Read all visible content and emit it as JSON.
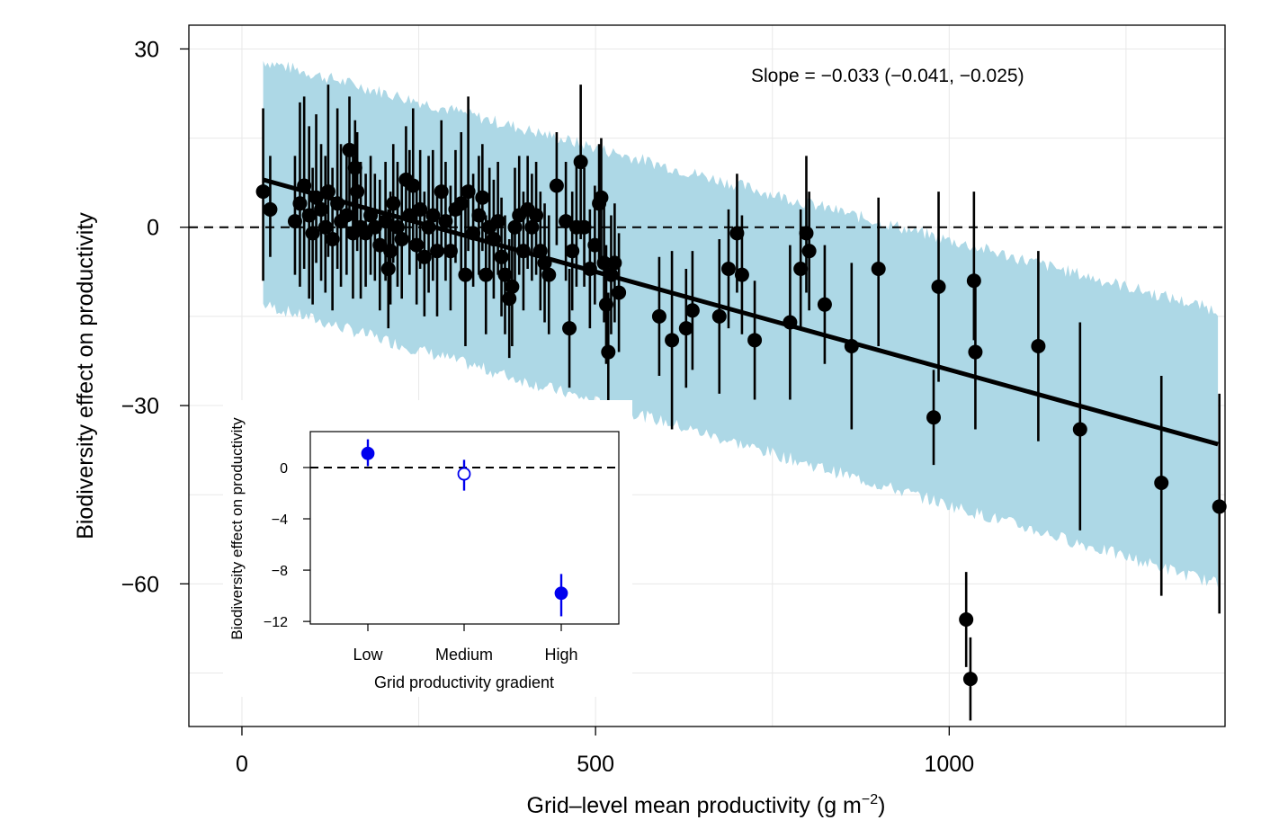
{
  "chart_data": [
    {
      "type": "scatter",
      "title": "",
      "xlabel": "Grid–level mean productivity (g m",
      "xlabel_sup": "−2",
      "xlabel_suffix": ")",
      "ylabel": "Biodiversity effect on productivity",
      "xlim": [
        -75,
        1390
      ],
      "ylim": [
        -84,
        34
      ],
      "xticks": [
        0,
        500,
        1000
      ],
      "xtick_labels": [
        "0",
        "500",
        "1000"
      ],
      "yticks": [
        30,
        0,
        -30,
        -60
      ],
      "ytick_labels": [
        "30",
        "0",
        "−30",
        "−60"
      ],
      "grid": true,
      "reference_line_y": 0,
      "annotation": "Slope = −0.033 (−0.041, −0.025)",
      "fit_line": {
        "x": [
          30,
          1380
        ],
        "y": [
          8,
          -36.5
        ]
      },
      "band": {
        "x": [
          30,
          1380
        ],
        "upper": [
          28,
          -14
        ],
        "lower": [
          -13,
          -60
        ]
      },
      "points": [
        {
          "x": 30,
          "y": 6,
          "lo": -9,
          "hi": 20
        },
        {
          "x": 40,
          "y": 3,
          "lo": -5,
          "hi": 12
        },
        {
          "x": 75,
          "y": 1,
          "lo": -8,
          "hi": 12
        },
        {
          "x": 82,
          "y": 4,
          "lo": -10,
          "hi": 21
        },
        {
          "x": 88,
          "y": 7,
          "lo": -7,
          "hi": 22
        },
        {
          "x": 95,
          "y": 2,
          "lo": -12,
          "hi": 17
        },
        {
          "x": 100,
          "y": -1,
          "lo": -13,
          "hi": 10
        },
        {
          "x": 105,
          "y": 5,
          "lo": -6,
          "hi": 19
        },
        {
          "x": 112,
          "y": 3,
          "lo": -9,
          "hi": 14
        },
        {
          "x": 118,
          "y": 0,
          "lo": -11,
          "hi": 12
        },
        {
          "x": 122,
          "y": 6,
          "lo": -5,
          "hi": 24
        },
        {
          "x": 128,
          "y": -2,
          "lo": -14,
          "hi": 10
        },
        {
          "x": 135,
          "y": 4,
          "lo": -7,
          "hi": 20
        },
        {
          "x": 140,
          "y": 1,
          "lo": -10,
          "hi": 14
        },
        {
          "x": 148,
          "y": 2,
          "lo": -8,
          "hi": 13
        },
        {
          "x": 152,
          "y": 13,
          "lo": 2,
          "hi": 22
        },
        {
          "x": 157,
          "y": -1,
          "lo": -12,
          "hi": 12
        },
        {
          "x": 160,
          "y": 10,
          "lo": -2,
          "hi": 18
        },
        {
          "x": 163,
          "y": 6,
          "lo": -4,
          "hi": 16
        },
        {
          "x": 168,
          "y": 0,
          "lo": -12,
          "hi": 11
        },
        {
          "x": 175,
          "y": -1,
          "lo": -10,
          "hi": 9
        },
        {
          "x": 182,
          "y": 2,
          "lo": -8,
          "hi": 12
        },
        {
          "x": 188,
          "y": 0,
          "lo": -9,
          "hi": 9
        },
        {
          "x": 195,
          "y": -3,
          "lo": -14,
          "hi": 8
        },
        {
          "x": 203,
          "y": 1,
          "lo": -9,
          "hi": 11
        },
        {
          "x": 207,
          "y": -7,
          "lo": -17,
          "hi": 3
        },
        {
          "x": 210,
          "y": -4,
          "lo": -13,
          "hi": 6
        },
        {
          "x": 214,
          "y": 4,
          "lo": -6,
          "hi": 14
        },
        {
          "x": 220,
          "y": 0,
          "lo": -10,
          "hi": 11
        },
        {
          "x": 226,
          "y": -2,
          "lo": -12,
          "hi": 8
        },
        {
          "x": 232,
          "y": 8,
          "lo": -2,
          "hi": 17
        },
        {
          "x": 237,
          "y": 2,
          "lo": -8,
          "hi": 13
        },
        {
          "x": 242,
          "y": 7,
          "lo": -4,
          "hi": 20
        },
        {
          "x": 247,
          "y": -3,
          "lo": -13,
          "hi": 8
        },
        {
          "x": 252,
          "y": 3,
          "lo": -7,
          "hi": 13
        },
        {
          "x": 258,
          "y": -5,
          "lo": -15,
          "hi": 6
        },
        {
          "x": 264,
          "y": 0,
          "lo": -11,
          "hi": 12
        },
        {
          "x": 270,
          "y": 2,
          "lo": -9,
          "hi": 13
        },
        {
          "x": 276,
          "y": -4,
          "lo": -15,
          "hi": 6
        },
        {
          "x": 282,
          "y": 6,
          "lo": -4,
          "hi": 18
        },
        {
          "x": 288,
          "y": 1,
          "lo": -9,
          "hi": 11
        },
        {
          "x": 295,
          "y": -4,
          "lo": -14,
          "hi": 7
        },
        {
          "x": 302,
          "y": 3,
          "lo": -6,
          "hi": 13
        },
        {
          "x": 310,
          "y": 4,
          "lo": -8,
          "hi": 16
        },
        {
          "x": 316,
          "y": -8,
          "lo": -20,
          "hi": 4
        },
        {
          "x": 320,
          "y": 6,
          "lo": -4,
          "hi": 22
        },
        {
          "x": 327,
          "y": -1,
          "lo": -10,
          "hi": 9
        },
        {
          "x": 335,
          "y": 2,
          "lo": -8,
          "hi": 12
        },
        {
          "x": 340,
          "y": 5,
          "lo": -4,
          "hi": 14
        },
        {
          "x": 345,
          "y": -8,
          "lo": -18,
          "hi": 2
        },
        {
          "x": 350,
          "y": 0,
          "lo": -9,
          "hi": 10
        },
        {
          "x": 356,
          "y": -2,
          "lo": -12,
          "hi": 8
        },
        {
          "x": 362,
          "y": 1,
          "lo": -8,
          "hi": 11
        },
        {
          "x": 367,
          "y": -5,
          "lo": -15,
          "hi": 5
        },
        {
          "x": 372,
          "y": -8,
          "lo": -18,
          "hi": 2
        },
        {
          "x": 378,
          "y": -12,
          "lo": -22,
          "hi": -2
        },
        {
          "x": 382,
          "y": -10,
          "lo": -20,
          "hi": 0
        },
        {
          "x": 386,
          "y": 0,
          "lo": -9,
          "hi": 10
        },
        {
          "x": 392,
          "y": 2,
          "lo": -8,
          "hi": 12
        },
        {
          "x": 398,
          "y": -4,
          "lo": -14,
          "hi": 6
        },
        {
          "x": 404,
          "y": 3,
          "lo": -7,
          "hi": 12
        },
        {
          "x": 410,
          "y": 0,
          "lo": -9,
          "hi": 9
        },
        {
          "x": 416,
          "y": 2,
          "lo": -8,
          "hi": 11
        },
        {
          "x": 422,
          "y": -4,
          "lo": -14,
          "hi": 6
        },
        {
          "x": 428,
          "y": -6,
          "lo": -16,
          "hi": 4
        },
        {
          "x": 434,
          "y": -8,
          "lo": -18,
          "hi": 2
        },
        {
          "x": 445,
          "y": 7,
          "lo": -3,
          "hi": 16
        },
        {
          "x": 458,
          "y": 1,
          "lo": -9,
          "hi": 11
        },
        {
          "x": 463,
          "y": -17,
          "lo": -27,
          "hi": -7
        },
        {
          "x": 467,
          "y": -4,
          "lo": -14,
          "hi": 6
        },
        {
          "x": 473,
          "y": 0,
          "lo": -10,
          "hi": 11
        },
        {
          "x": 479,
          "y": 11,
          "lo": -2,
          "hi": 24
        },
        {
          "x": 484,
          "y": 0,
          "lo": -10,
          "hi": 10
        },
        {
          "x": 492,
          "y": -7,
          "lo": -17,
          "hi": 3
        },
        {
          "x": 499,
          "y": -3,
          "lo": -13,
          "hi": 7
        },
        {
          "x": 505,
          "y": 4,
          "lo": -6,
          "hi": 14
        },
        {
          "x": 508,
          "y": 5,
          "lo": -5,
          "hi": 15
        },
        {
          "x": 512,
          "y": -6,
          "lo": -16,
          "hi": 4
        },
        {
          "x": 515,
          "y": -13,
          "lo": -23,
          "hi": -3
        },
        {
          "x": 518,
          "y": -21,
          "lo": -31,
          "hi": -11
        },
        {
          "x": 522,
          "y": -8,
          "lo": -18,
          "hi": 2
        },
        {
          "x": 527,
          "y": -6,
          "lo": -16,
          "hi": 4
        },
        {
          "x": 533,
          "y": -11,
          "lo": -21,
          "hi": -1
        },
        {
          "x": 590,
          "y": -15,
          "lo": -25,
          "hi": -5
        },
        {
          "x": 608,
          "y": -19,
          "lo": -34,
          "hi": -4
        },
        {
          "x": 628,
          "y": -17,
          "lo": -27,
          "hi": -7
        },
        {
          "x": 637,
          "y": -14,
          "lo": -24,
          "hi": -4
        },
        {
          "x": 675,
          "y": -15,
          "lo": -28,
          "hi": -2
        },
        {
          "x": 688,
          "y": -7,
          "lo": -17,
          "hi": 3
        },
        {
          "x": 700,
          "y": -1,
          "lo": -11,
          "hi": 9
        },
        {
          "x": 707,
          "y": -8,
          "lo": -18,
          "hi": 2
        },
        {
          "x": 725,
          "y": -19,
          "lo": -29,
          "hi": -9
        },
        {
          "x": 775,
          "y": -16,
          "lo": -29,
          "hi": -3
        },
        {
          "x": 790,
          "y": -7,
          "lo": -17,
          "hi": 3
        },
        {
          "x": 798,
          "y": -1,
          "lo": -11,
          "hi": 12
        },
        {
          "x": 802,
          "y": -4,
          "lo": -14,
          "hi": 6
        },
        {
          "x": 824,
          "y": -13,
          "lo": -23,
          "hi": -3
        },
        {
          "x": 862,
          "y": -20,
          "lo": -34,
          "hi": -6
        },
        {
          "x": 900,
          "y": -7,
          "lo": -20,
          "hi": 5
        },
        {
          "x": 978,
          "y": -32,
          "lo": -40,
          "hi": -24
        },
        {
          "x": 985,
          "y": -10,
          "lo": -26,
          "hi": 6
        },
        {
          "x": 1035,
          "y": -9,
          "lo": -19,
          "hi": 6
        },
        {
          "x": 1037,
          "y": -21,
          "lo": -34,
          "hi": -8
        },
        {
          "x": 1126,
          "y": -20,
          "lo": -36,
          "hi": -4
        },
        {
          "x": 1185,
          "y": -34,
          "lo": -51,
          "hi": -16
        },
        {
          "x": 1300,
          "y": -43,
          "lo": -62,
          "hi": -25
        },
        {
          "x": 1382,
          "y": -47,
          "lo": -65,
          "hi": -28
        },
        {
          "x": 1024,
          "y": -66,
          "lo": -74,
          "hi": -58
        },
        {
          "x": 1030,
          "y": -76,
          "lo": -83,
          "hi": -69
        }
      ]
    },
    {
      "type": "scatter",
      "title": "",
      "xlabel": "Grid productivity gradient",
      "ylabel": "Biodiversity effect on productivity",
      "categories": [
        "Low",
        "Medium",
        "High"
      ],
      "ylim": [
        -12.2,
        2.8
      ],
      "yticks": [
        0,
        -4,
        -8,
        -12
      ],
      "ytick_labels": [
        "0",
        "−4",
        "−8",
        "−12"
      ],
      "reference_line_y": 0,
      "points": [
        {
          "category": "Low",
          "y": 1.1,
          "lo": 0.1,
          "hi": 2.2,
          "filled": true
        },
        {
          "category": "Medium",
          "y": -0.5,
          "lo": -1.8,
          "hi": 0.6,
          "filled": false
        },
        {
          "category": "High",
          "y": -9.8,
          "lo": -11.6,
          "hi": -8.3,
          "filled": true
        }
      ],
      "marker_color": "#0000ee"
    }
  ],
  "colors": {
    "band": "#add8e6",
    "points": "#000000",
    "grid": "#e8e8e8"
  }
}
